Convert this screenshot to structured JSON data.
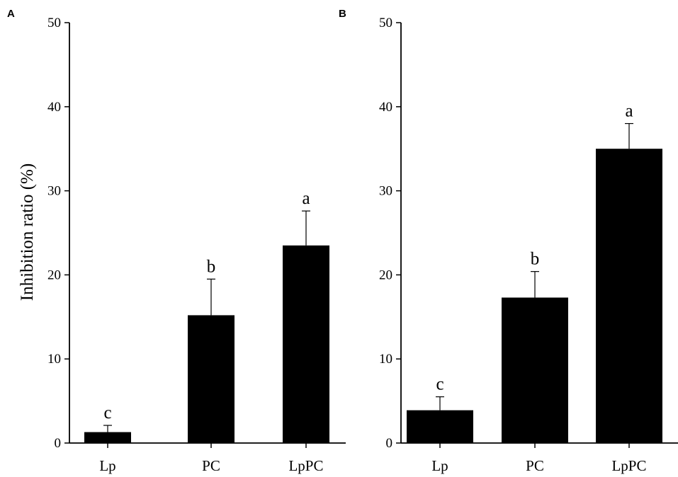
{
  "chart_data": [
    {
      "panel": "A",
      "type": "bar",
      "ylabel": "Inhibition ratio (%)",
      "ylim": [
        0,
        50
      ],
      "yticks": [
        0,
        10,
        20,
        30,
        40,
        50
      ],
      "categories": [
        "Lp",
        "PC",
        "LpPC"
      ],
      "values": [
        1.3,
        15.2,
        23.5
      ],
      "error_upper": [
        0.8,
        4.3,
        4.1
      ],
      "significance": [
        "c",
        "b",
        "a"
      ],
      "bar_color": "#000000"
    },
    {
      "panel": "B",
      "type": "bar",
      "ylabel": "",
      "ylim": [
        0,
        50
      ],
      "yticks": [
        0,
        10,
        20,
        30,
        40,
        50
      ],
      "categories": [
        "Lp",
        "PC",
        "LpPC"
      ],
      "values": [
        3.9,
        17.3,
        35.0
      ],
      "error_upper": [
        1.6,
        3.1,
        3.0
      ],
      "significance": [
        "c",
        "b",
        "a"
      ],
      "bar_color": "#000000"
    }
  ]
}
